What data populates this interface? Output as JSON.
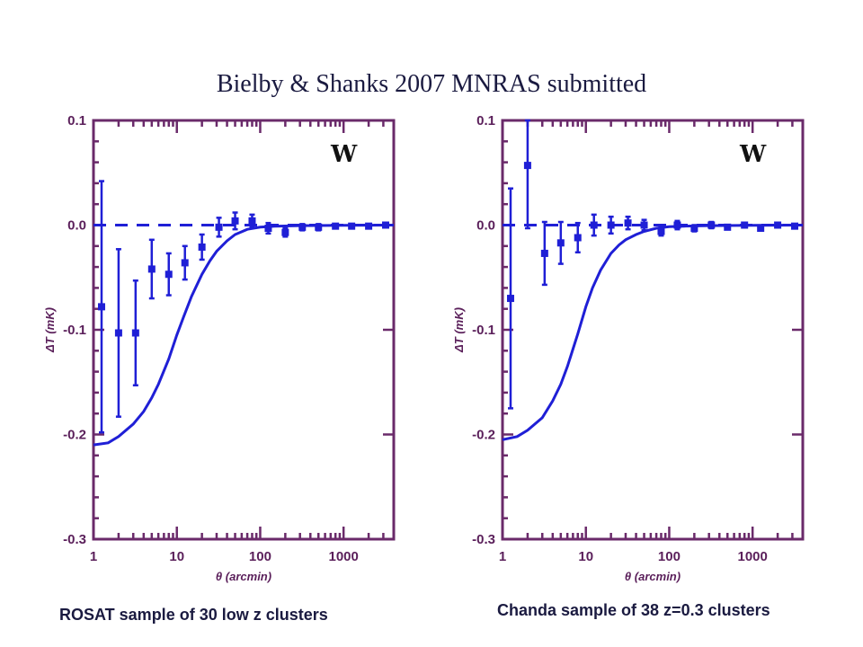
{
  "slide": {
    "title": "Bielby & Shanks 2007 MNRAS submitted"
  },
  "chart_data": [
    {
      "type": "scatter",
      "caption": "ROSAT sample of 30 low z clusters",
      "panel_symbol": "W",
      "xlabel": "θ (arcmin)",
      "ylabel": "ΔT (mK)",
      "xscale": "log",
      "xlim": [
        1,
        4000
      ],
      "ylim": [
        -0.3,
        0.1
      ],
      "xticks": [
        1,
        10,
        100,
        1000
      ],
      "xtick_labels": [
        "1",
        "10",
        "100",
        "1000"
      ],
      "yticks": [
        0.1,
        0.0,
        -0.1,
        -0.2,
        -0.3
      ],
      "ytick_labels": [
        "0.1",
        "0.0",
        "-0.1",
        "-0.2",
        "-0.3"
      ],
      "grid": false,
      "reference_line": {
        "style": "dashed",
        "y": 0.0
      },
      "series": [
        {
          "kind": "points_with_errorbars",
          "x": [
            1.25,
            2.0,
            3.2,
            5.0,
            8.0,
            12.5,
            20,
            32,
            50,
            80,
            125,
            200,
            320,
            500,
            800,
            1250,
            2000,
            3200
          ],
          "y": [
            -0.078,
            -0.103,
            -0.103,
            -0.042,
            -0.047,
            -0.036,
            -0.021,
            -0.002,
            0.004,
            0.004,
            -0.003,
            -0.007,
            -0.002,
            -0.002,
            -0.001,
            -0.001,
            -0.001,
            0.0
          ],
          "yerr": [
            0.12,
            0.08,
            0.05,
            0.028,
            0.02,
            0.016,
            0.012,
            0.009,
            0.008,
            0.006,
            0.005,
            0.004,
            0.003,
            0.003,
            0.002,
            0.002,
            0.002,
            0.002
          ]
        },
        {
          "kind": "model_curve",
          "x": [
            1,
            1.5,
            2,
            3,
            4,
            5,
            6,
            8,
            10,
            12,
            15,
            20,
            25,
            30,
            40,
            50,
            70,
            100,
            150,
            300,
            1000,
            4000
          ],
          "y": [
            -0.21,
            -0.208,
            -0.202,
            -0.19,
            -0.178,
            -0.165,
            -0.152,
            -0.128,
            -0.105,
            -0.088,
            -0.068,
            -0.047,
            -0.034,
            -0.025,
            -0.015,
            -0.009,
            -0.004,
            -0.002,
            -0.001,
            -0.0005,
            -0.0002,
            0.0
          ]
        }
      ]
    },
    {
      "type": "scatter",
      "caption": "Chanda sample of 38 z=0.3 clusters",
      "panel_symbol": "W",
      "xlabel": "θ (arcmin)",
      "ylabel": "ΔT (mK)",
      "xscale": "log",
      "xlim": [
        1,
        4000
      ],
      "ylim": [
        -0.3,
        0.1
      ],
      "xticks": [
        1,
        10,
        100,
        1000
      ],
      "xtick_labels": [
        "1",
        "10",
        "100",
        "1000"
      ],
      "yticks": [
        0.1,
        0.0,
        -0.1,
        -0.2,
        -0.3
      ],
      "ytick_labels": [
        "0.1",
        "0.0",
        "-0.1",
        "-0.2",
        "-0.3"
      ],
      "grid": false,
      "reference_line": {
        "style": "dashed",
        "y": 0.0
      },
      "series": [
        {
          "kind": "points_with_errorbars",
          "x": [
            1.25,
            2.0,
            3.2,
            5.0,
            8.0,
            12.5,
            20,
            32,
            50,
            80,
            125,
            200,
            320,
            500,
            800,
            1250,
            2000,
            3200
          ],
          "y": [
            -0.07,
            0.057,
            -0.027,
            -0.017,
            -0.012,
            0.0,
            0.0,
            0.002,
            0.0,
            -0.006,
            0.0,
            -0.003,
            0.0,
            -0.002,
            0.0,
            -0.003,
            0.0,
            -0.001
          ],
          "yerr": [
            0.105,
            0.06,
            0.03,
            0.02,
            0.014,
            0.01,
            0.008,
            0.006,
            0.005,
            0.004,
            0.004,
            0.003,
            0.003,
            0.002,
            0.002,
            0.002,
            0.002,
            0.002
          ]
        },
        {
          "kind": "model_curve",
          "x": [
            1,
            1.5,
            2,
            3,
            4,
            5,
            6,
            8,
            10,
            12,
            15,
            20,
            25,
            30,
            40,
            50,
            70,
            100,
            150,
            300,
            1000,
            4000
          ],
          "y": [
            -0.205,
            -0.202,
            -0.196,
            -0.184,
            -0.168,
            -0.152,
            -0.135,
            -0.104,
            -0.078,
            -0.06,
            -0.043,
            -0.027,
            -0.019,
            -0.014,
            -0.009,
            -0.006,
            -0.003,
            -0.0015,
            -0.001,
            -0.0005,
            -0.0002,
            0.0
          ]
        }
      ]
    }
  ]
}
